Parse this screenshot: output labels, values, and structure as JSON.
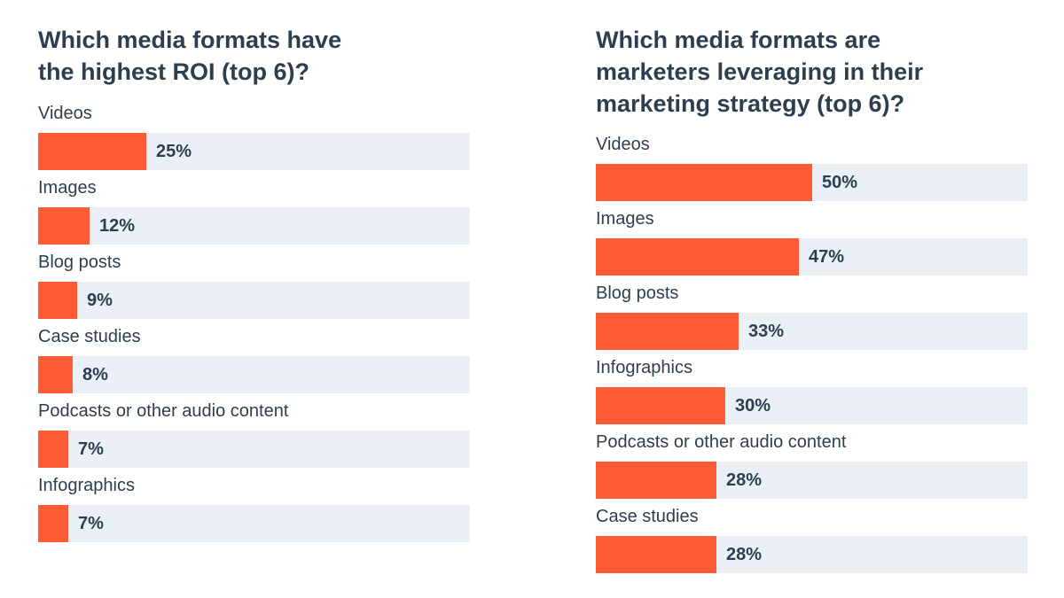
{
  "colors": {
    "bar": "#ff5c35",
    "track": "#eaf0f6",
    "text": "#2d3e50"
  },
  "chart_data": [
    {
      "type": "bar",
      "orientation": "horizontal",
      "title": "Which media formats have\nthe highest ROI (top 6)?",
      "categories": [
        "Videos",
        "Images",
        "Blog posts",
        "Case studies",
        "Podcasts or other audio content",
        "Infographics"
      ],
      "values": [
        25,
        12,
        9,
        8,
        7,
        7
      ],
      "value_labels": [
        "25%",
        "12%",
        "9%",
        "8%",
        "7%",
        "7%"
      ],
      "xlim": [
        0,
        100
      ],
      "grid": false
    },
    {
      "type": "bar",
      "orientation": "horizontal",
      "title": "Which media formats are\nmarketers leveraging in their\nmarketing strategy (top 6)?",
      "categories": [
        "Videos",
        "Images",
        "Blog posts",
        "Infographics",
        "Podcasts or other audio content",
        "Case studies"
      ],
      "values": [
        50,
        47,
        33,
        30,
        28,
        28
      ],
      "value_labels": [
        "50%",
        "47%",
        "33%",
        "30%",
        "28%",
        "28%"
      ],
      "xlim": [
        0,
        100
      ],
      "grid": false
    }
  ]
}
